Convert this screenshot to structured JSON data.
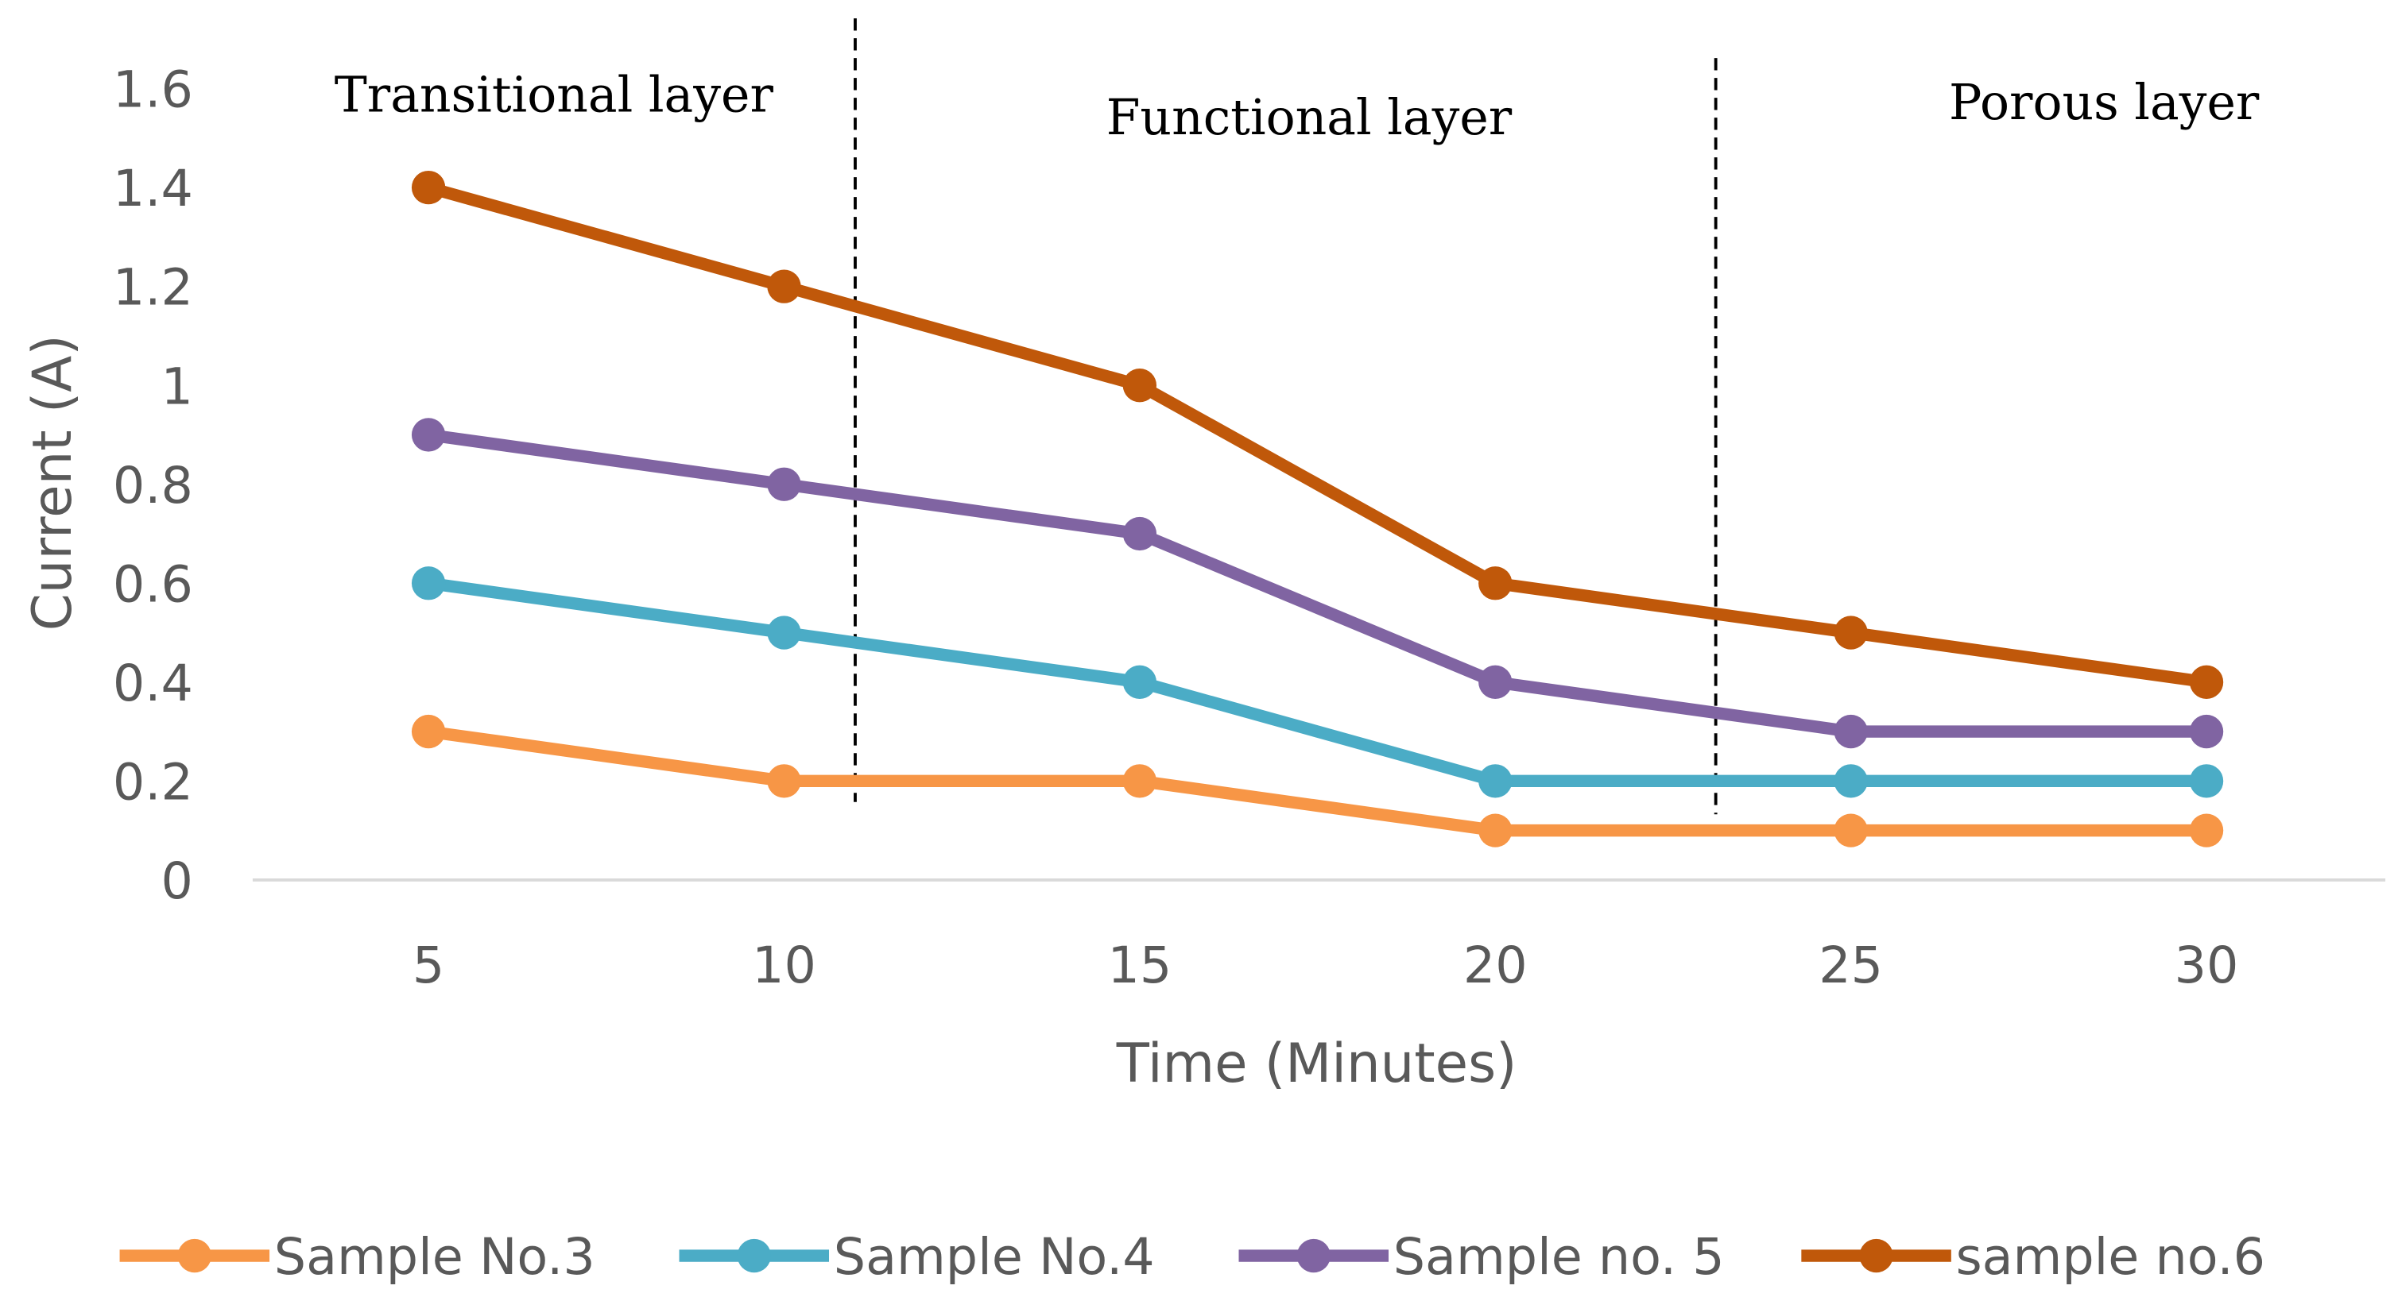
{
  "chart_data": {
    "type": "line",
    "title": "",
    "xlabel": "Time (Minutes)",
    "ylabel": "Current (A)",
    "x": [
      5,
      10,
      15,
      20,
      25,
      30
    ],
    "x_tick_labels": [
      "5",
      "10",
      "15",
      "20",
      "25",
      "30"
    ],
    "y_tick_labels": [
      "0",
      "0.2",
      "0.4",
      "0.6",
      "0.8",
      "1",
      "1.2",
      "1.4",
      "1.6"
    ],
    "ylim": [
      0,
      1.6
    ],
    "grid": false,
    "legend_position": "bottom",
    "series": [
      {
        "name": "Sample No.3",
        "color": "#F79646",
        "values": [
          0.3,
          0.2,
          0.2,
          0.1,
          0.1,
          0.1
        ]
      },
      {
        "name": "Sample No.4",
        "color": "#4BACC6",
        "values": [
          0.6,
          0.5,
          0.4,
          0.2,
          0.2,
          0.2
        ]
      },
      {
        "name": "Sample no. 5",
        "color": "#8064A2",
        "values": [
          0.9,
          0.8,
          0.7,
          0.4,
          0.3,
          0.3
        ]
      },
      {
        "name": "sample no.6",
        "color": "#C0580A",
        "values": [
          1.4,
          1.2,
          1.0,
          0.6,
          0.5,
          0.4
        ]
      }
    ],
    "annotations": [
      {
        "text": "Transitional layer"
      },
      {
        "text": "Functional layer"
      },
      {
        "text": "Porous layer"
      }
    ],
    "region_boundaries_x": [
      11,
      23.1
    ]
  }
}
